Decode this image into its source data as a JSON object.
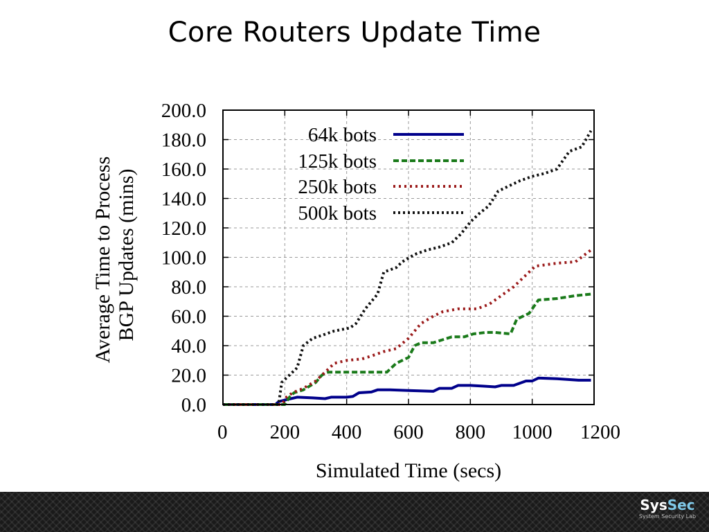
{
  "slide": {
    "title": "Core Routers Update Time"
  },
  "logo": {
    "brand_part1": "Sys",
    "brand_part2": "Sec",
    "subtitle": "System Security Lab"
  },
  "chart_data": {
    "type": "line",
    "title": "",
    "xlabel": "Simulated Time (secs)",
    "ylabel_lines": [
      "Average Time to Process",
      "BGP Updates (mins)"
    ],
    "xlim": [
      0,
      1200
    ],
    "ylim": [
      0,
      200
    ],
    "x_ticks": [
      0,
      200,
      400,
      600,
      800,
      1000,
      1200
    ],
    "x_tick_labels": [
      "0",
      "200",
      "400",
      "600",
      "800",
      "1000",
      "1200"
    ],
    "y_ticks": [
      0,
      20,
      40,
      60,
      80,
      100,
      120,
      140,
      160,
      180,
      200
    ],
    "y_tick_labels": [
      "0.0",
      "20.0",
      "40.0",
      "60.0",
      "80.0",
      "100.0",
      "120.0",
      "140.0",
      "160.0",
      "180.0",
      "200.0"
    ],
    "grid": true,
    "legend_position": "top-left inside",
    "series": [
      {
        "name": "64k bots",
        "color": "#00008b",
        "dash": "solid",
        "points": [
          [
            0,
            0
          ],
          [
            170,
            0
          ],
          [
            180,
            2
          ],
          [
            200,
            3
          ],
          [
            240,
            5
          ],
          [
            290,
            4.5
          ],
          [
            330,
            4
          ],
          [
            350,
            5
          ],
          [
            400,
            5
          ],
          [
            420,
            5.5
          ],
          [
            440,
            8
          ],
          [
            480,
            8.5
          ],
          [
            500,
            10
          ],
          [
            540,
            10
          ],
          [
            600,
            9.5
          ],
          [
            680,
            9
          ],
          [
            700,
            11
          ],
          [
            740,
            11
          ],
          [
            760,
            13
          ],
          [
            800,
            13
          ],
          [
            840,
            12.5
          ],
          [
            880,
            12
          ],
          [
            900,
            13
          ],
          [
            940,
            13
          ],
          [
            980,
            16
          ],
          [
            1000,
            16
          ],
          [
            1020,
            18
          ],
          [
            1080,
            17.5
          ],
          [
            1150,
            16.5
          ],
          [
            1190,
            16.5
          ]
        ]
      },
      {
        "name": "125k bots",
        "color": "#1a7a1a",
        "dash": "8 4",
        "points": [
          [
            0,
            0
          ],
          [
            200,
            0
          ],
          [
            215,
            5
          ],
          [
            230,
            8
          ],
          [
            260,
            10
          ],
          [
            300,
            15
          ],
          [
            320,
            20
          ],
          [
            340,
            22
          ],
          [
            380,
            22
          ],
          [
            420,
            22
          ],
          [
            460,
            22
          ],
          [
            510,
            22
          ],
          [
            530,
            22
          ],
          [
            560,
            28
          ],
          [
            600,
            32
          ],
          [
            620,
            40
          ],
          [
            640,
            42
          ],
          [
            680,
            42
          ],
          [
            710,
            44
          ],
          [
            740,
            46
          ],
          [
            780,
            46
          ],
          [
            810,
            48
          ],
          [
            850,
            49
          ],
          [
            880,
            49
          ],
          [
            930,
            48
          ],
          [
            950,
            58
          ],
          [
            990,
            62
          ],
          [
            1020,
            71
          ],
          [
            1080,
            72
          ],
          [
            1140,
            74
          ],
          [
            1190,
            75
          ]
        ]
      },
      {
        "name": "250k bots",
        "color": "#9b1b1b",
        "dash": "3 5",
        "points": [
          [
            0,
            0
          ],
          [
            190,
            0
          ],
          [
            205,
            5
          ],
          [
            225,
            8
          ],
          [
            260,
            11
          ],
          [
            300,
            16
          ],
          [
            330,
            22
          ],
          [
            360,
            28
          ],
          [
            400,
            30
          ],
          [
            450,
            31
          ],
          [
            480,
            33
          ],
          [
            520,
            36
          ],
          [
            560,
            38
          ],
          [
            600,
            45
          ],
          [
            640,
            55
          ],
          [
            680,
            60
          ],
          [
            710,
            63
          ],
          [
            760,
            65
          ],
          [
            820,
            65
          ],
          [
            860,
            68
          ],
          [
            900,
            74
          ],
          [
            940,
            80
          ],
          [
            980,
            88
          ],
          [
            1010,
            94
          ],
          [
            1080,
            96
          ],
          [
            1140,
            97
          ],
          [
            1190,
            105
          ]
        ]
      },
      {
        "name": "500k bots",
        "color": "#111111",
        "dash": "3 4",
        "points": [
          [
            0,
            0
          ],
          [
            180,
            0
          ],
          [
            190,
            15
          ],
          [
            215,
            20
          ],
          [
            240,
            25
          ],
          [
            260,
            40
          ],
          [
            290,
            45
          ],
          [
            320,
            47
          ],
          [
            360,
            50
          ],
          [
            410,
            52
          ],
          [
            430,
            55
          ],
          [
            460,
            65
          ],
          [
            500,
            75
          ],
          [
            520,
            90
          ],
          [
            560,
            93
          ],
          [
            580,
            97
          ],
          [
            620,
            102
          ],
          [
            660,
            105
          ],
          [
            700,
            107
          ],
          [
            740,
            110
          ],
          [
            770,
            116
          ],
          [
            800,
            124
          ],
          [
            830,
            130
          ],
          [
            860,
            135
          ],
          [
            890,
            145
          ],
          [
            920,
            148
          ],
          [
            960,
            152
          ],
          [
            1000,
            155
          ],
          [
            1040,
            157
          ],
          [
            1080,
            160
          ],
          [
            1120,
            172
          ],
          [
            1160,
            175
          ],
          [
            1190,
            186
          ]
        ]
      }
    ]
  }
}
